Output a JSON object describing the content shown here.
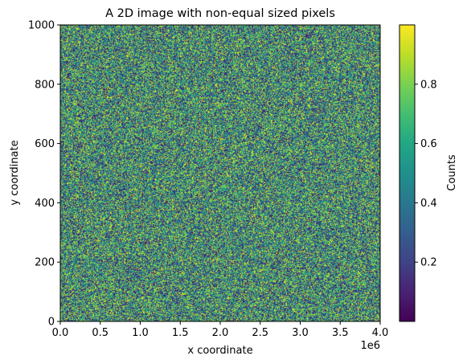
{
  "chart_data": {
    "type": "heatmap",
    "title": "A 2D image with non-equal sized pixels",
    "xlabel": "x coordinate",
    "ylabel": "y coordinate",
    "x_offset_label": "1e6",
    "xlim": [
      0.0,
      4.0
    ],
    "ylim": [
      0,
      1000
    ],
    "x_ticks": [
      "0.0",
      "0.5",
      "1.0",
      "1.5",
      "2.0",
      "2.5",
      "3.0",
      "3.5",
      "4.0"
    ],
    "y_ticks": [
      "0",
      "200",
      "400",
      "600",
      "800",
      "1000"
    ],
    "colormap": "viridis",
    "value_range": [
      0.0,
      1.0
    ],
    "values": "uniform random noise in [0, 1]",
    "grid": false,
    "colorbar": {
      "label": "Counts",
      "ticks": [
        "0.2",
        "0.4",
        "0.6",
        "0.8"
      ],
      "tick_values": [
        0.2,
        0.4,
        0.6,
        0.8
      ]
    }
  }
}
